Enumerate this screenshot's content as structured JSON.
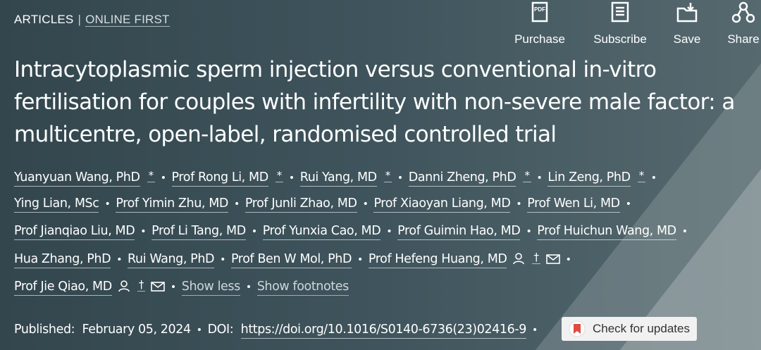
{
  "header": {
    "section": "ARTICLES",
    "divider": "|",
    "subsection": "ONLINE FIRST"
  },
  "actions": [
    {
      "icon_text": "PDF",
      "label": "Purchase"
    },
    {
      "label": "Subscribe"
    },
    {
      "label": "Save"
    },
    {
      "label": "Share"
    }
  ],
  "title": "Intracytoplasmic sperm injection versus conventional in-vitro fertilisation for couples with infertility with non-severe male factor: a multicentre, open-label, randomised controlled trial",
  "separator": "•",
  "authors": [
    {
      "name": "Yuanyuan Wang, PhD",
      "mark": "*"
    },
    {
      "name": "Prof Rong Li, MD",
      "mark": "*"
    },
    {
      "name": "Rui Yang, MD",
      "mark": "*"
    },
    {
      "name": "Danni Zheng, PhD",
      "mark": "*"
    },
    {
      "name": "Lin Zeng, PhD",
      "mark": "*"
    },
    {
      "name": "Ying Lian, MSc"
    },
    {
      "name": "Prof Yimin Zhu, MD"
    },
    {
      "name": "Prof Junli Zhao, MD"
    },
    {
      "name": "Prof Xiaoyan Liang, MD"
    },
    {
      "name": "Prof Wen Li, MD"
    },
    {
      "name": "Prof Jianqiao Liu, MD"
    },
    {
      "name": "Prof Li Tang, MD"
    },
    {
      "name": "Prof Yunxia Cao, MD"
    },
    {
      "name": "Prof Guimin Hao, MD"
    },
    {
      "name": "Prof Huichun Wang, MD"
    },
    {
      "name": "Hua Zhang, PhD"
    },
    {
      "name": "Rui Wang, PhD"
    },
    {
      "name": "Prof Ben W Mol, PhD"
    },
    {
      "name": "Prof Hefeng Huang, MD",
      "mark": "†",
      "contact": true
    },
    {
      "name": "Prof Jie Qiao, MD",
      "mark": "†",
      "contact": true
    }
  ],
  "links": [
    "Show less",
    "Show footnotes"
  ],
  "published": {
    "label": "Published:",
    "date": "February 05, 2024"
  },
  "doi": {
    "label": "DOI:",
    "url": "https://doi.org/10.1016/S0140-6736(23)02416-9"
  },
  "updates_button": "Check for updates"
}
